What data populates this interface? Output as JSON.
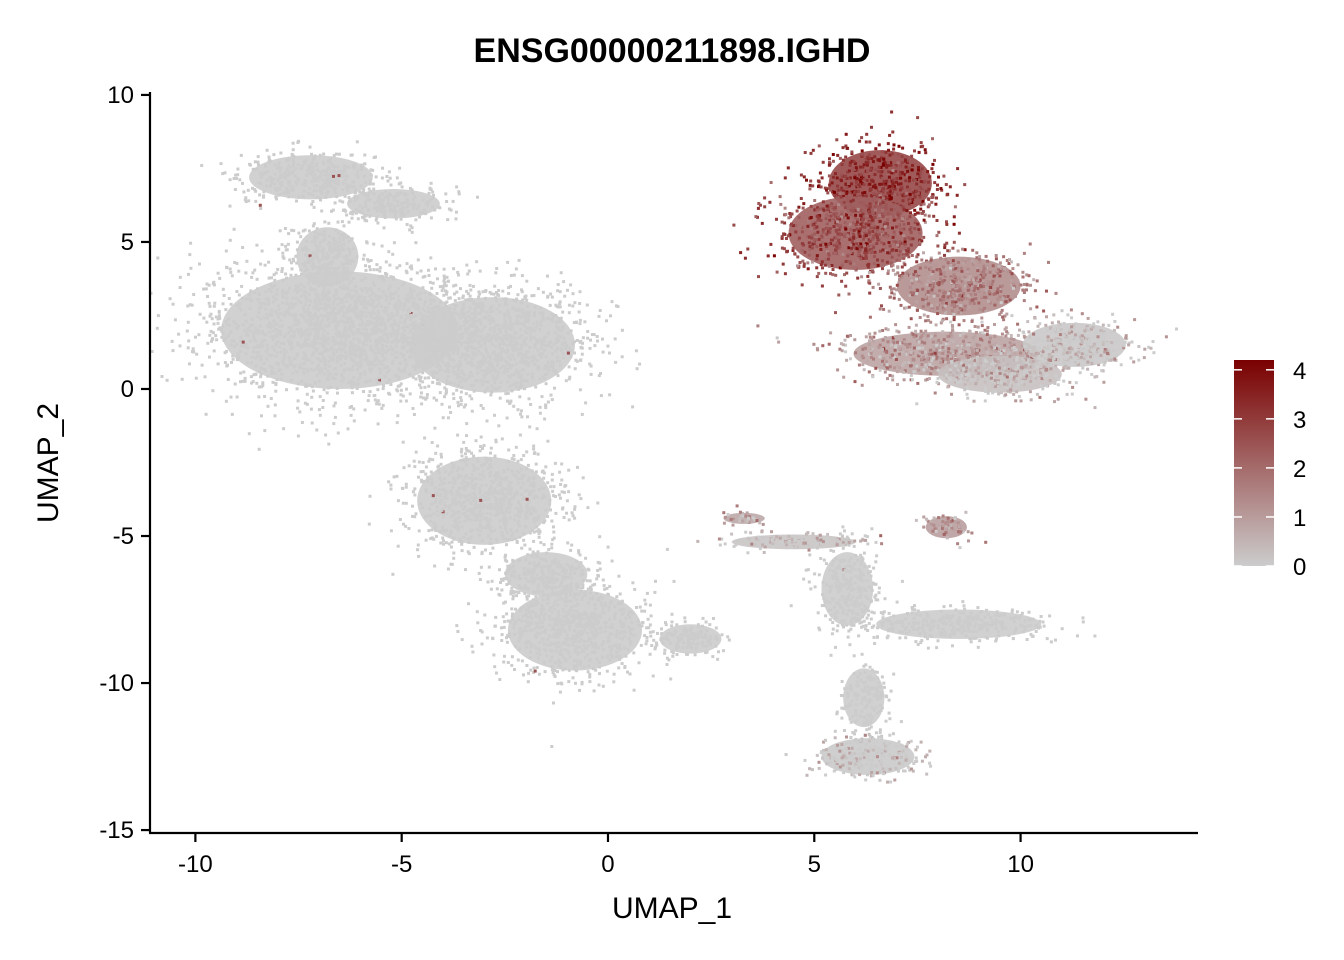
{
  "chart_data": {
    "type": "scatter",
    "title": "ENSG00000211898.IGHD",
    "xlabel": "UMAP_1",
    "ylabel": "UMAP_2",
    "xlim": [
      -11.1,
      14.3
    ],
    "ylim": [
      -15.1,
      10.1
    ],
    "xticks": [
      -10,
      -5,
      0,
      5,
      10
    ],
    "xtick_labels": [
      "-10",
      "-5",
      "0",
      "5",
      "10"
    ],
    "yticks": [
      10,
      5,
      0,
      -5,
      -10,
      -15
    ],
    "ytick_labels": [
      "10",
      "5",
      "0",
      "-5",
      "-10",
      "-15"
    ],
    "grid": false,
    "legend": {
      "type": "colorbar",
      "placement": "right",
      "min": 0,
      "max": 4.2,
      "ticks": [
        0,
        1,
        2,
        3,
        4
      ],
      "tick_labels": [
        "0",
        "1",
        "2",
        "3",
        "4"
      ],
      "color_low": "#cccccc",
      "color_high": "#7a0000"
    },
    "clusters": [
      {
        "center": [
          -6.5,
          2.0
        ],
        "spread": [
          2.3,
          1.6
        ],
        "expression": 0.0
      },
      {
        "center": [
          -7.2,
          7.2
        ],
        "spread": [
          1.2,
          0.6
        ],
        "expression": 0.0
      },
      {
        "center": [
          -5.2,
          6.3
        ],
        "spread": [
          0.9,
          0.4
        ],
        "expression": 0.0
      },
      {
        "center": [
          -6.8,
          4.5
        ],
        "spread": [
          0.6,
          0.8
        ],
        "expression": 0.0
      },
      {
        "center": [
          -2.8,
          1.5
        ],
        "spread": [
          1.6,
          1.3
        ],
        "expression": 0.0
      },
      {
        "center": [
          -3.0,
          -3.8
        ],
        "spread": [
          1.3,
          1.2
        ],
        "expression": 0.0
      },
      {
        "center": [
          -0.8,
          -8.2
        ],
        "spread": [
          1.3,
          1.1
        ],
        "expression": 0.0
      },
      {
        "center": [
          -1.5,
          -6.3
        ],
        "spread": [
          0.8,
          0.6
        ],
        "expression": 0.0
      },
      {
        "center": [
          6.6,
          7.0
        ],
        "spread": [
          1.0,
          0.9
        ],
        "expression": 3.2
      },
      {
        "center": [
          6.0,
          5.3
        ],
        "spread": [
          1.3,
          1.0
        ],
        "expression": 2.6
      },
      {
        "center": [
          8.5,
          3.5
        ],
        "spread": [
          1.2,
          0.8
        ],
        "expression": 1.5
      },
      {
        "center": [
          8.2,
          1.2
        ],
        "spread": [
          1.8,
          0.6
        ],
        "expression": 1.0
      },
      {
        "center": [
          11.3,
          1.5
        ],
        "spread": [
          1.0,
          0.6
        ],
        "expression": 0.1
      },
      {
        "center": [
          9.5,
          0.5
        ],
        "spread": [
          1.2,
          0.5
        ],
        "expression": 0.3
      },
      {
        "center": [
          6.3,
          -12.5
        ],
        "spread": [
          0.9,
          0.5
        ],
        "expression": 0.05
      },
      {
        "center": [
          6.2,
          -10.5
        ],
        "spread": [
          0.4,
          0.8
        ],
        "expression": 0.0
      },
      {
        "center": [
          8.5,
          -8.0
        ],
        "spread": [
          1.6,
          0.4
        ],
        "expression": 0.0
      },
      {
        "center": [
          5.8,
          -6.8
        ],
        "spread": [
          0.5,
          1.0
        ],
        "expression": 0.0
      },
      {
        "center": [
          4.5,
          -5.2
        ],
        "spread": [
          1.2,
          0.2
        ],
        "expression": 0.2
      },
      {
        "center": [
          8.2,
          -4.7
        ],
        "spread": [
          0.4,
          0.3
        ],
        "expression": 1.1
      },
      {
        "center": [
          3.3,
          -4.4
        ],
        "spread": [
          0.4,
          0.15
        ],
        "expression": 0.9
      },
      {
        "center": [
          2.0,
          -8.5
        ],
        "spread": [
          0.6,
          0.4
        ],
        "expression": 0.0
      }
    ]
  }
}
